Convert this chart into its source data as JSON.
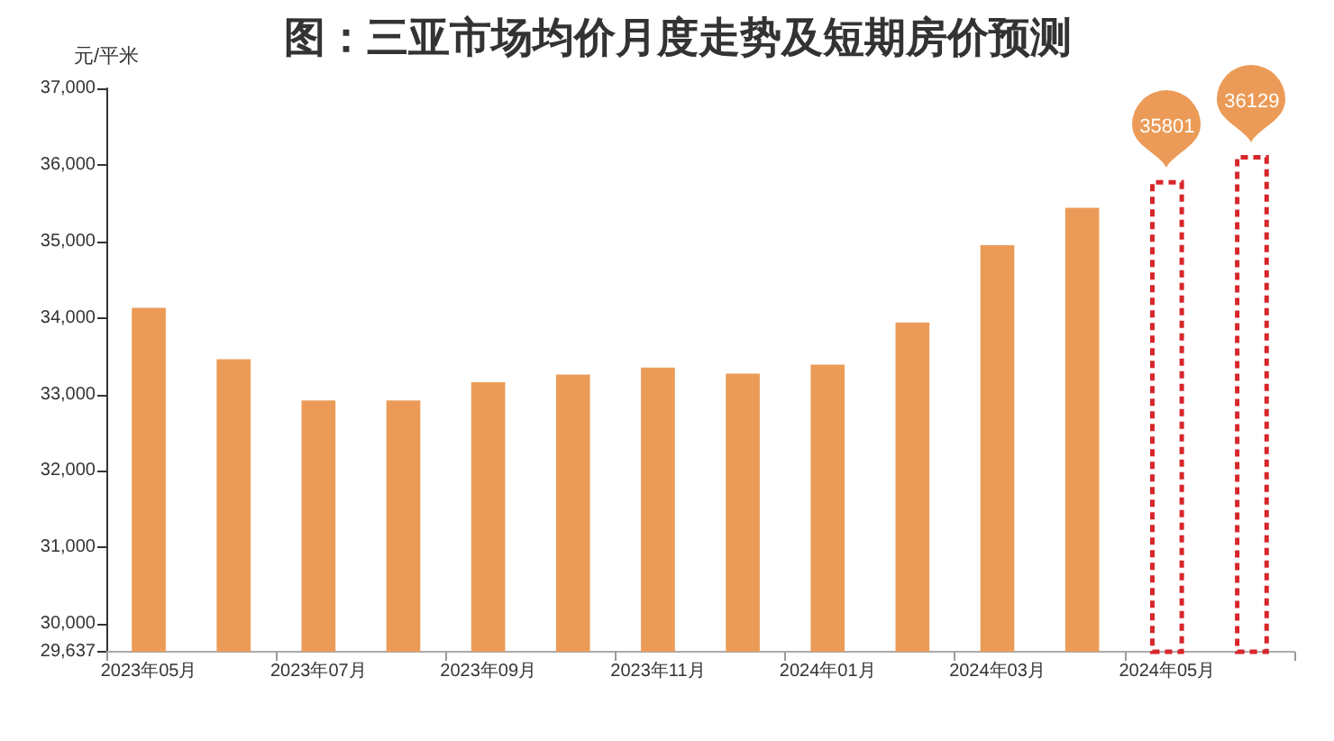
{
  "chart_data": {
    "type": "bar",
    "title": "图：三亚市场均价月度走势及短期房价预测",
    "ylabel": "元/平米",
    "categories": [
      "2023年05月",
      null,
      "2023年07月",
      null,
      "2023年09月",
      null,
      "2023年11月",
      null,
      "2024年01月",
      null,
      "2024年03月",
      null,
      "2024年05月",
      null
    ],
    "series": [
      {
        "color": "#eb9b57",
        "values": [
          34130,
          33460,
          32920,
          32920,
          33160,
          33260,
          33350,
          33270,
          33390,
          33940,
          34950,
          35440,
          null,
          null
        ]
      },
      {
        "color": "#d7262b",
        "line_style": "dashed",
        "values": [
          null,
          null,
          null,
          null,
          null,
          null,
          null,
          null,
          null,
          null,
          null,
          null,
          35801,
          36129
        ],
        "value_labels": [
          null,
          null,
          null,
          null,
          null,
          null,
          null,
          null,
          null,
          null,
          null,
          null,
          "35801",
          "36129"
        ]
      }
    ],
    "ylim": [
      29637,
      37000
    ],
    "yticks": [
      {
        "value": 29637,
        "label": "29,637"
      },
      {
        "value": 30000,
        "label": "30,000"
      },
      {
        "value": 31000,
        "label": "31,000"
      },
      {
        "value": 32000,
        "label": "32,000"
      },
      {
        "value": 33000,
        "label": "33,000"
      },
      {
        "value": 34000,
        "label": "34,000"
      },
      {
        "value": 35000,
        "label": "35,000"
      },
      {
        "value": 36000,
        "label": "36,000"
      },
      {
        "value": 37000,
        "label": "37,000"
      }
    ]
  }
}
